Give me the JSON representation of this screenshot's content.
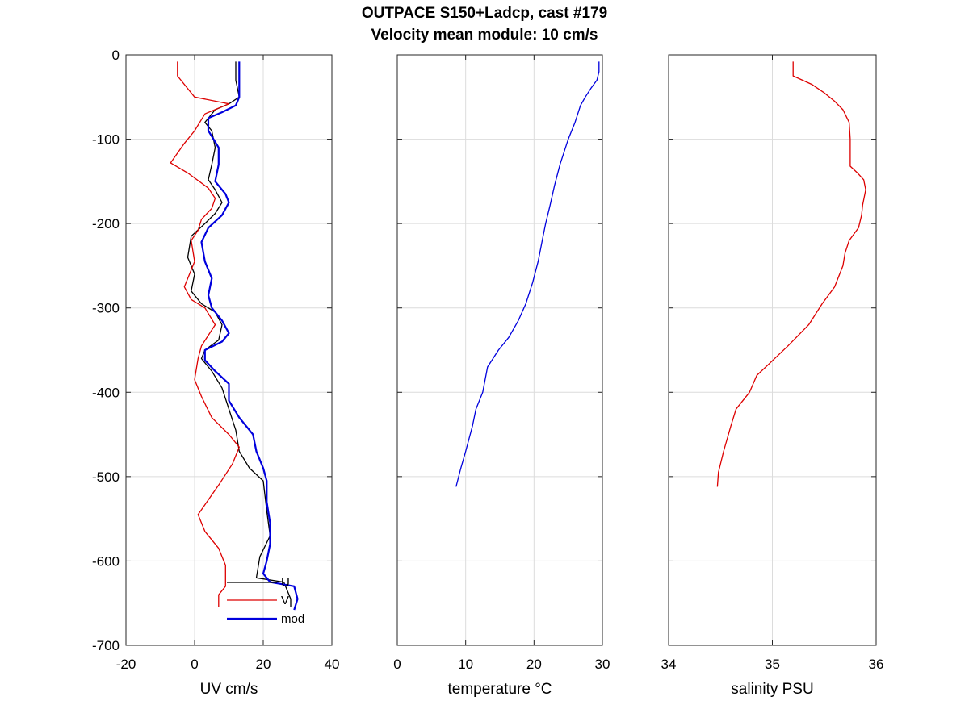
{
  "title": {
    "line1": "OUTPACE S150+Ladcp, cast #179",
    "line2": "Velocity mean module:  10 cm/s"
  },
  "chart_data": [
    {
      "type": "line",
      "id": "uv",
      "xlabel": "UV cm/s",
      "xlim": [
        -20,
        40
      ],
      "ylim": [
        -700,
        0
      ],
      "xticks": [
        -20,
        0,
        20,
        40
      ],
      "yticks": [
        0,
        -100,
        -200,
        -300,
        -400,
        -500,
        -600,
        -700
      ],
      "grid": true,
      "legend": {
        "placement": "bottom-right",
        "entries": [
          "U",
          "V",
          "mod"
        ]
      },
      "series": [
        {
          "name": "U",
          "color": "#000000",
          "width": 1.3,
          "points": [
            [
              12,
              -8
            ],
            [
              12,
              -30
            ],
            [
              13,
              -50
            ],
            [
              10,
              -58
            ],
            [
              6,
              -65
            ],
            [
              3,
              -80
            ],
            [
              5,
              -90
            ],
            [
              6,
              -110
            ],
            [
              5,
              -130
            ],
            [
              4,
              -148
            ],
            [
              6,
              -160
            ],
            [
              8,
              -175
            ],
            [
              6,
              -188
            ],
            [
              3,
              -200
            ],
            [
              -1,
              -215
            ],
            [
              -2,
              -240
            ],
            [
              0,
              -260
            ],
            [
              -1,
              -280
            ],
            [
              2,
              -295
            ],
            [
              6,
              -305
            ],
            [
              8,
              -320
            ],
            [
              7,
              -338
            ],
            [
              3,
              -350
            ],
            [
              2,
              -360
            ],
            [
              5,
              -375
            ],
            [
              8,
              -395
            ],
            [
              10,
              -420
            ],
            [
              12,
              -445
            ],
            [
              13,
              -470
            ],
            [
              16,
              -490
            ],
            [
              20,
              -505
            ],
            [
              21,
              -540
            ],
            [
              22,
              -570
            ],
            [
              19,
              -595
            ],
            [
              18,
              -620
            ],
            [
              26,
              -625
            ],
            [
              28,
              -645
            ],
            [
              28,
              -655
            ]
          ]
        },
        {
          "name": "V",
          "color": "#dd0000",
          "width": 1.3,
          "points": [
            [
              -5,
              -8
            ],
            [
              -5,
              -25
            ],
            [
              0,
              -50
            ],
            [
              10,
              -58
            ],
            [
              3,
              -70
            ],
            [
              0,
              -90
            ],
            [
              -3,
              -105
            ],
            [
              -7,
              -128
            ],
            [
              -2,
              -140
            ],
            [
              4,
              -158
            ],
            [
              6,
              -170
            ],
            [
              5,
              -182
            ],
            [
              2,
              -195
            ],
            [
              1,
              -208
            ],
            [
              -1,
              -220
            ],
            [
              0,
              -245
            ],
            [
              -3,
              -275
            ],
            [
              -1,
              -290
            ],
            [
              3,
              -300
            ],
            [
              6,
              -320
            ],
            [
              2,
              -345
            ],
            [
              1,
              -360
            ],
            [
              0,
              -385
            ],
            [
              2,
              -405
            ],
            [
              5,
              -430
            ],
            [
              10,
              -450
            ],
            [
              13,
              -465
            ],
            [
              11,
              -485
            ],
            [
              7,
              -510
            ],
            [
              1,
              -545
            ],
            [
              3,
              -565
            ],
            [
              7,
              -585
            ],
            [
              9,
              -605
            ],
            [
              9,
              -630
            ],
            [
              7,
              -640
            ],
            [
              7,
              -655
            ]
          ]
        },
        {
          "name": "mod",
          "color": "#0000dd",
          "width": 2.2,
          "points": [
            [
              13,
              -8
            ],
            [
              13,
              -30
            ],
            [
              13,
              -50
            ],
            [
              12,
              -60
            ],
            [
              8,
              -68
            ],
            [
              4,
              -75
            ],
            [
              4,
              -90
            ],
            [
              7,
              -110
            ],
            [
              7,
              -130
            ],
            [
              6,
              -150
            ],
            [
              9,
              -165
            ],
            [
              10,
              -175
            ],
            [
              8,
              -190
            ],
            [
              4,
              -205
            ],
            [
              2,
              -222
            ],
            [
              3,
              -245
            ],
            [
              5,
              -265
            ],
            [
              4,
              -285
            ],
            [
              5,
              -300
            ],
            [
              8,
              -315
            ],
            [
              10,
              -330
            ],
            [
              8,
              -340
            ],
            [
              3,
              -350
            ],
            [
              3,
              -362
            ],
            [
              6,
              -375
            ],
            [
              10,
              -390
            ],
            [
              10,
              -410
            ],
            [
              13,
              -430
            ],
            [
              17,
              -450
            ],
            [
              18,
              -470
            ],
            [
              20,
              -490
            ],
            [
              21,
              -505
            ],
            [
              21,
              -530
            ],
            [
              22,
              -555
            ],
            [
              22,
              -580
            ],
            [
              21,
              -600
            ],
            [
              20,
              -615
            ],
            [
              22,
              -625
            ],
            [
              29,
              -630
            ],
            [
              30,
              -645
            ],
            [
              29,
              -658
            ]
          ]
        }
      ]
    },
    {
      "type": "line",
      "id": "temperature",
      "xlabel": "temperature °C",
      "xlim": [
        0,
        30
      ],
      "ylim": [
        -700,
        0
      ],
      "xticks": [
        0,
        10,
        20,
        30
      ],
      "yticks": [
        0,
        -100,
        -200,
        -300,
        -400,
        -500,
        -600,
        -700
      ],
      "grid": true,
      "series": [
        {
          "color": "#0000dd",
          "width": 1.3,
          "points": [
            [
              29.5,
              -8
            ],
            [
              29.5,
              -20
            ],
            [
              29.2,
              -30
            ],
            [
              28.3,
              -40
            ],
            [
              27.5,
              -50
            ],
            [
              26.8,
              -60
            ],
            [
              26,
              -80
            ],
            [
              25,
              -100
            ],
            [
              23.8,
              -130
            ],
            [
              23,
              -155
            ],
            [
              22.3,
              -180
            ],
            [
              21.7,
              -200
            ],
            [
              21.2,
              -220
            ],
            [
              20.6,
              -245
            ],
            [
              19.8,
              -270
            ],
            [
              18.8,
              -295
            ],
            [
              17.7,
              -315
            ],
            [
              16.3,
              -335
            ],
            [
              14.8,
              -350
            ],
            [
              13.2,
              -370
            ],
            [
              12.5,
              -400
            ],
            [
              11.5,
              -420
            ],
            [
              11,
              -440
            ],
            [
              10,
              -470
            ],
            [
              9.3,
              -490
            ],
            [
              8.6,
              -512
            ]
          ]
        }
      ]
    },
    {
      "type": "line",
      "id": "salinity",
      "xlabel": "salinity PSU",
      "xlim": [
        34,
        36
      ],
      "ylim": [
        -700,
        0
      ],
      "xticks": [
        34,
        35,
        36
      ],
      "yticks": [
        0,
        -100,
        -200,
        -300,
        -400,
        -500,
        -600,
        -700
      ],
      "grid": true,
      "series": [
        {
          "color": "#dd0000",
          "width": 1.3,
          "points": [
            [
              35.2,
              -8
            ],
            [
              35.2,
              -25
            ],
            [
              35.38,
              -35
            ],
            [
              35.5,
              -45
            ],
            [
              35.6,
              -55
            ],
            [
              35.68,
              -65
            ],
            [
              35.74,
              -80
            ],
            [
              35.75,
              -100
            ],
            [
              35.75,
              -132
            ],
            [
              35.82,
              -140
            ],
            [
              35.88,
              -148
            ],
            [
              35.9,
              -160
            ],
            [
              35.87,
              -178
            ],
            [
              35.86,
              -190
            ],
            [
              35.83,
              -205
            ],
            [
              35.74,
              -220
            ],
            [
              35.7,
              -235
            ],
            [
              35.68,
              -250
            ],
            [
              35.6,
              -275
            ],
            [
              35.48,
              -295
            ],
            [
              35.35,
              -320
            ],
            [
              35.15,
              -345
            ],
            [
              34.98,
              -365
            ],
            [
              34.85,
              -380
            ],
            [
              34.78,
              -400
            ],
            [
              34.65,
              -420
            ],
            [
              34.6,
              -440
            ],
            [
              34.53,
              -470
            ],
            [
              34.48,
              -495
            ],
            [
              34.47,
              -512
            ]
          ]
        }
      ]
    }
  ]
}
